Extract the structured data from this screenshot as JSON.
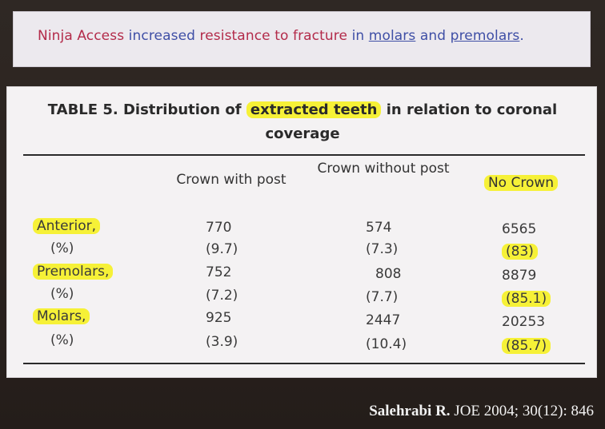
{
  "banner": {
    "part1": "Ninja Access",
    "part2": "increased",
    "part3": "resistance to fracture",
    "part4": "in",
    "part5": "molars",
    "part6": "and",
    "part7": "premolars",
    "part8": "."
  },
  "table": {
    "caption_prefix": "TABLE 5.",
    "caption_mid1": "Distribution of",
    "caption_highlight": "extracted teeth",
    "caption_mid2": "in relation to coronal",
    "caption_line2": "coverage",
    "headers": [
      "Crown with post",
      "Crown without post",
      "No Crown"
    ],
    "rows": [
      {
        "label": "Anterior,",
        "values": [
          "770",
          "574",
          "6565"
        ]
      },
      {
        "label": "(%)",
        "values": [
          "(9.7)",
          "(7.3)",
          "(83)"
        ]
      },
      {
        "label": "Premolars,",
        "values": [
          "752",
          "808",
          "8879"
        ]
      },
      {
        "label": "(%)",
        "values": [
          "(7.2)",
          "(7.7)",
          "(85.1)"
        ]
      },
      {
        "label": "Molars,",
        "values": [
          "925",
          "2447",
          "20253"
        ]
      },
      {
        "label": "(%)",
        "values": [
          "(3.9)",
          "(10.4)",
          "(85.7)"
        ]
      }
    ]
  },
  "citation": {
    "author": "Salehrabi R.",
    "source": "JOE 2004; 30(12): 846"
  },
  "colors": {
    "highlight": "#f6f137",
    "banner_red": "#b32b4a",
    "banner_blue": "#3f4fa6"
  }
}
